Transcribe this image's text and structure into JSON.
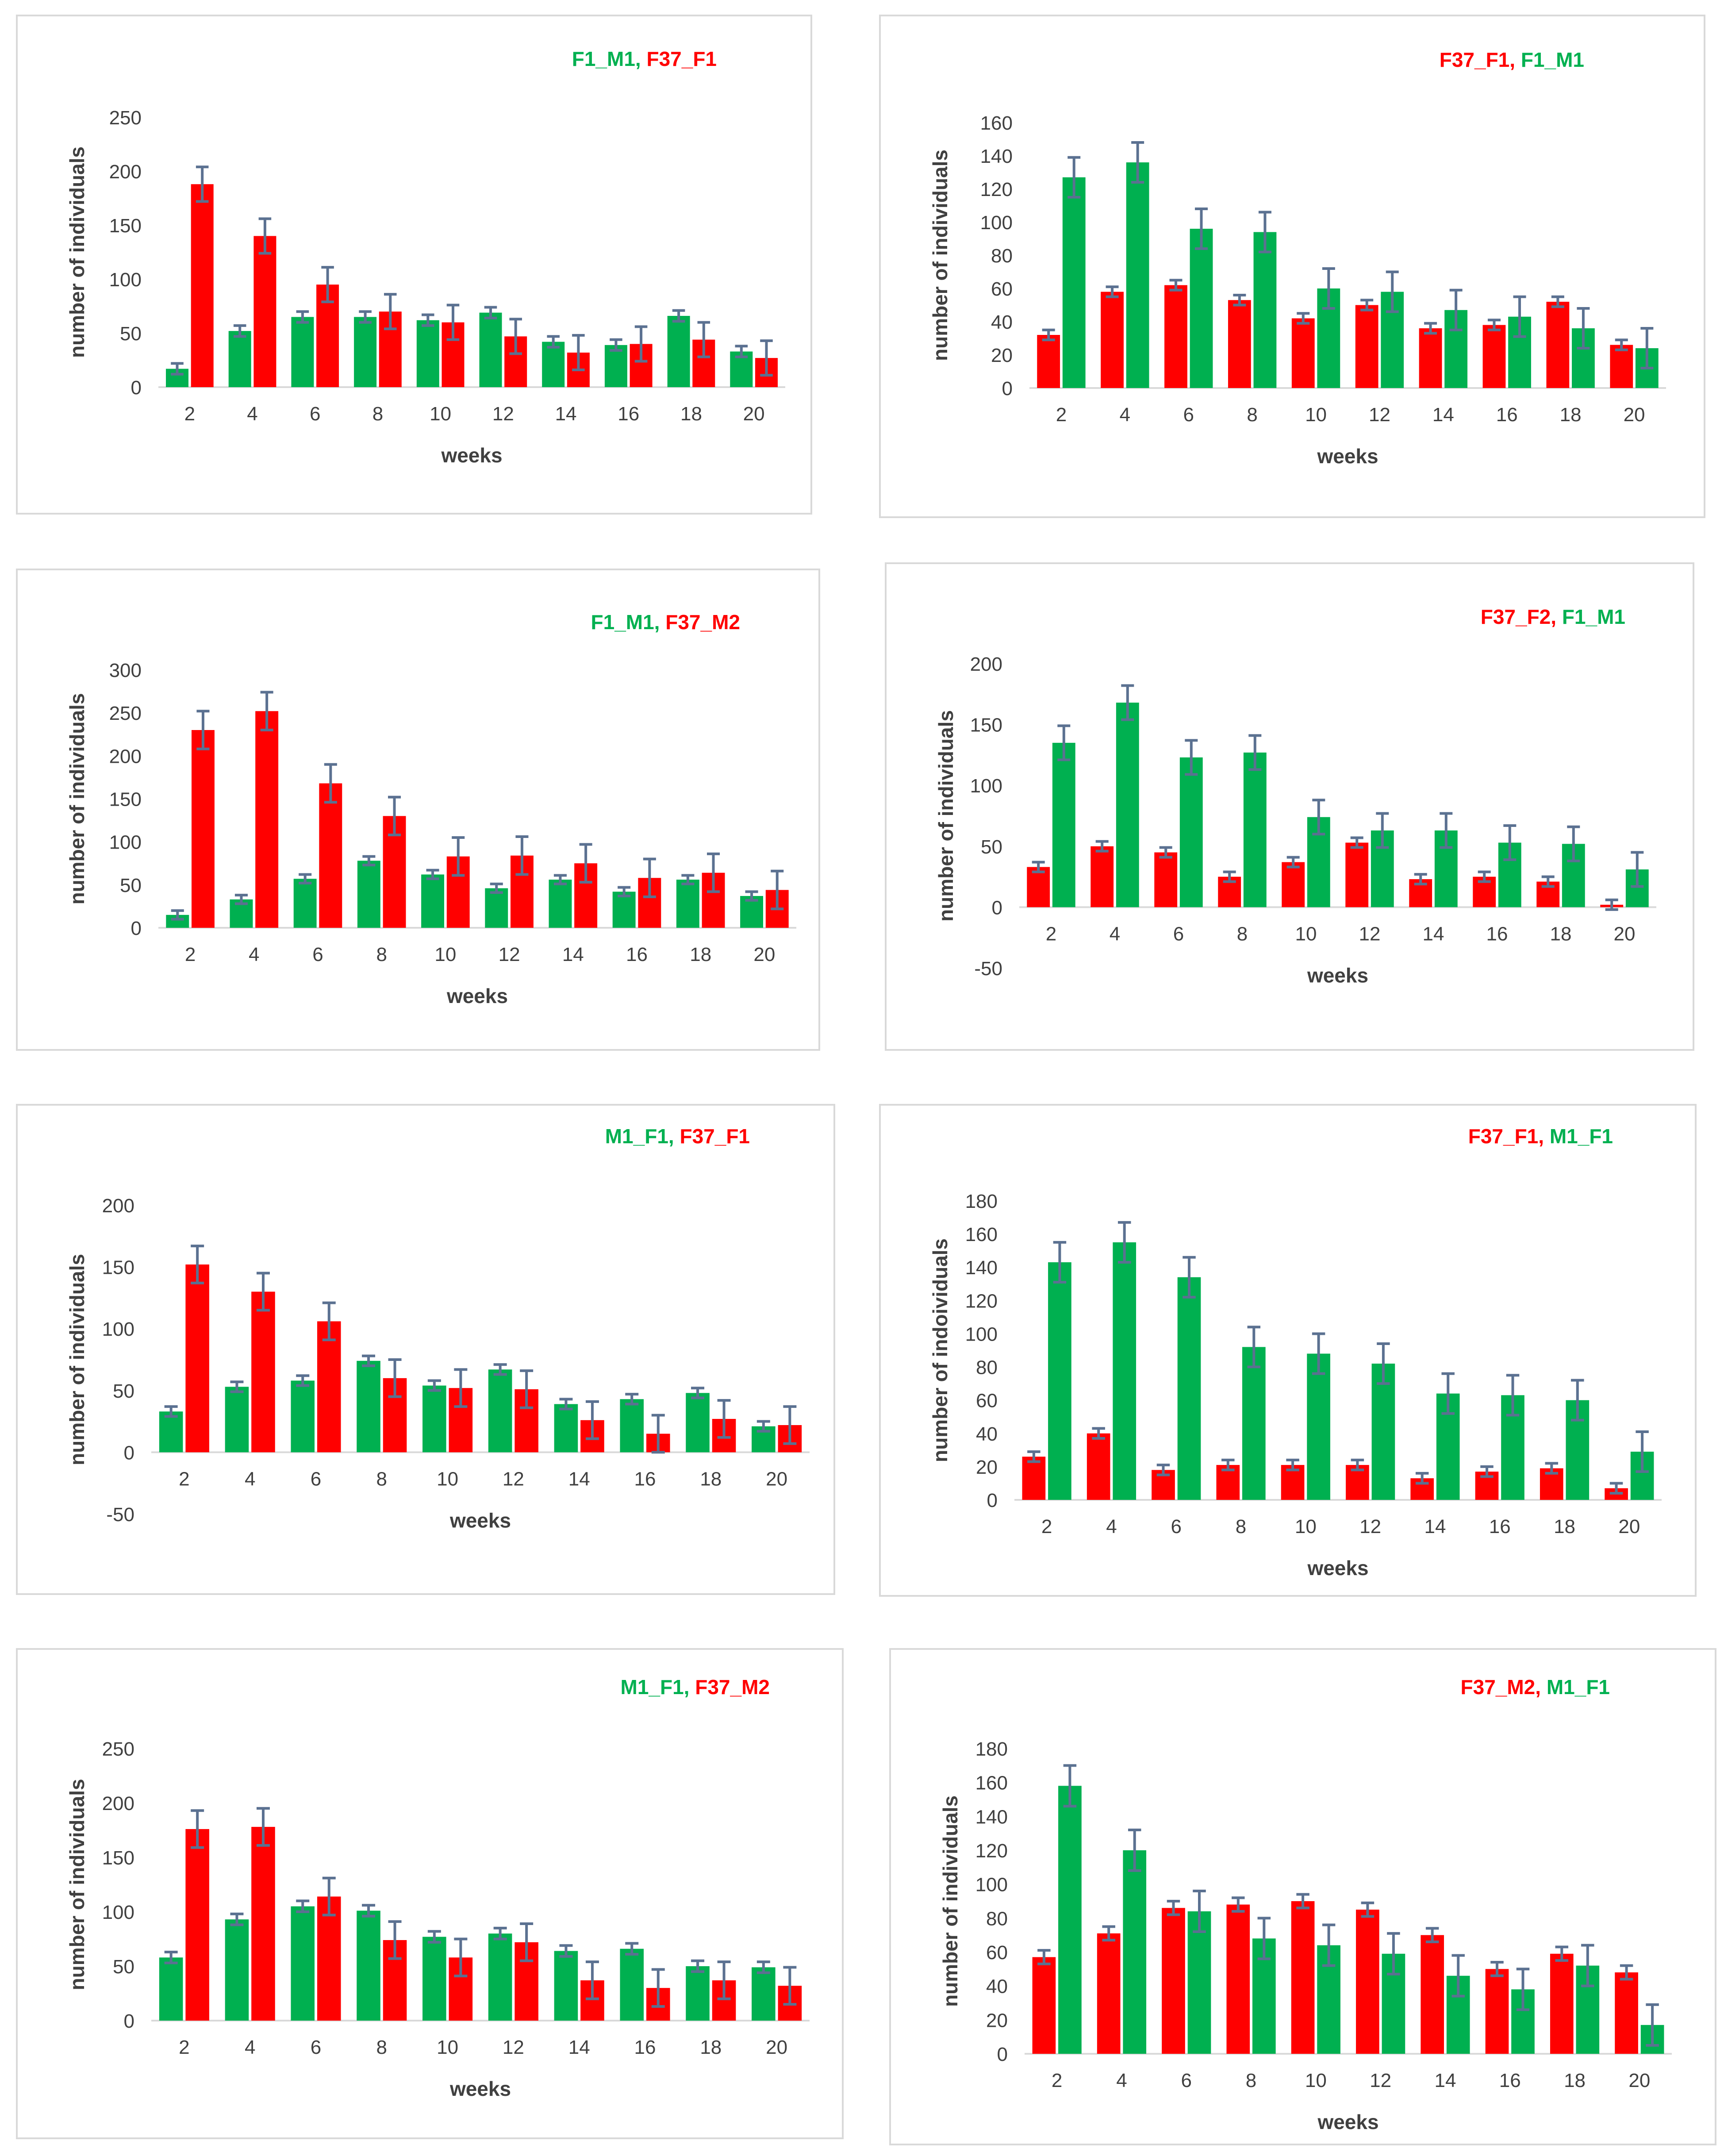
{
  "colors": {
    "red": "#ff0000",
    "green": "#00b050",
    "error": "#5b7191",
    "text": "#404040"
  },
  "chart_data": [
    {
      "type": "bar",
      "title": "F1_M1, F37_F1",
      "legend": [
        {
          "name": "F1_M1",
          "color": "green"
        },
        {
          "name": "F37_F1",
          "color": "red"
        }
      ],
      "xlabel": "weeks",
      "ylabel": "number of individuals",
      "categories": [
        "2",
        "4",
        "6",
        "8",
        "10",
        "12",
        "14",
        "16",
        "18",
        "20"
      ],
      "ylim": [
        0,
        250
      ],
      "yticks": [
        0,
        50,
        100,
        150,
        200,
        250
      ],
      "series": [
        {
          "name": "F1_M1",
          "color": "green",
          "values": [
            17,
            52,
            65,
            65,
            62,
            69,
            42,
            39,
            66,
            33
          ],
          "errors": [
            5,
            5,
            5,
            5,
            5,
            5,
            5,
            5,
            5,
            5
          ]
        },
        {
          "name": "F37_F1",
          "color": "red",
          "values": [
            188,
            140,
            95,
            70,
            60,
            47,
            32,
            40,
            44,
            27
          ],
          "errors": [
            16,
            16,
            16,
            16,
            16,
            16,
            16,
            16,
            16,
            16
          ]
        }
      ]
    },
    {
      "type": "bar",
      "title": "F37_F1, F1_M1",
      "legend": [
        {
          "name": "F37_F1",
          "color": "red"
        },
        {
          "name": "F1_M1",
          "color": "green"
        }
      ],
      "xlabel": "weeks",
      "ylabel": "number of individuals",
      "categories": [
        "2",
        "4",
        "6",
        "8",
        "10",
        "12",
        "14",
        "16",
        "18",
        "20"
      ],
      "ylim": [
        0,
        160
      ],
      "yticks": [
        0,
        20,
        40,
        60,
        80,
        100,
        120,
        140,
        160
      ],
      "series": [
        {
          "name": "F37_F1",
          "color": "red",
          "values": [
            32,
            58,
            62,
            53,
            42,
            50,
            36,
            38,
            52,
            26
          ],
          "errors": [
            3,
            3,
            3,
            3,
            3,
            3,
            3,
            3,
            3,
            3
          ]
        },
        {
          "name": "F1_M1",
          "color": "green",
          "values": [
            127,
            136,
            96,
            94,
            60,
            58,
            47,
            43,
            36,
            24
          ],
          "errors": [
            12,
            12,
            12,
            12,
            12,
            12,
            12,
            12,
            12,
            12
          ]
        }
      ]
    },
    {
      "type": "bar",
      "title": "F1_M1, F37_M2",
      "legend": [
        {
          "name": "F1_M1",
          "color": "green"
        },
        {
          "name": "F37_M2",
          "color": "red"
        }
      ],
      "xlabel": "weeks",
      "ylabel": "number of individuals",
      "categories": [
        "2",
        "4",
        "6",
        "8",
        "10",
        "12",
        "14",
        "16",
        "18",
        "20"
      ],
      "ylim": [
        0,
        300
      ],
      "yticks": [
        0,
        50,
        100,
        150,
        200,
        250,
        300
      ],
      "series": [
        {
          "name": "F1_M1",
          "color": "green",
          "values": [
            15,
            33,
            57,
            78,
            62,
            46,
            56,
            42,
            56,
            37
          ],
          "errors": [
            5,
            5,
            5,
            5,
            5,
            5,
            5,
            5,
            5,
            5
          ]
        },
        {
          "name": "F37_M2",
          "color": "red",
          "values": [
            230,
            252,
            168,
            130,
            83,
            84,
            75,
            58,
            64,
            44
          ],
          "errors": [
            22,
            22,
            22,
            22,
            22,
            22,
            22,
            22,
            22,
            22
          ]
        }
      ]
    },
    {
      "type": "bar",
      "title": "F37_F2, F1_M1",
      "legend": [
        {
          "name": "F37_F2",
          "color": "red"
        },
        {
          "name": "F1_M1",
          "color": "green"
        }
      ],
      "xlabel": "weeks",
      "ylabel": "number of individuals",
      "categories": [
        "2",
        "4",
        "6",
        "8",
        "10",
        "12",
        "14",
        "16",
        "18",
        "20"
      ],
      "ylim": [
        -50,
        200
      ],
      "yticks": [
        -50,
        0,
        50,
        100,
        150,
        200
      ],
      "series": [
        {
          "name": "F37_F2",
          "color": "red",
          "values": [
            33,
            50,
            45,
            25,
            37,
            53,
            23,
            25,
            21,
            2
          ],
          "errors": [
            4,
            4,
            4,
            4,
            4,
            4,
            4,
            4,
            4,
            4
          ]
        },
        {
          "name": "F1_M1",
          "color": "green",
          "values": [
            135,
            168,
            123,
            127,
            74,
            63,
            63,
            53,
            52,
            31
          ],
          "errors": [
            14,
            14,
            14,
            14,
            14,
            14,
            14,
            14,
            14,
            14
          ]
        }
      ]
    },
    {
      "type": "bar",
      "title": "M1_F1, F37_F1",
      "legend": [
        {
          "name": "M1_F1",
          "color": "green"
        },
        {
          "name": "F37_F1",
          "color": "red"
        }
      ],
      "xlabel": "weeks",
      "ylabel": "number of individuals",
      "categories": [
        "2",
        "4",
        "6",
        "8",
        "10",
        "12",
        "14",
        "16",
        "18",
        "20"
      ],
      "ylim": [
        -50,
        200
      ],
      "yticks": [
        -50,
        0,
        50,
        100,
        150,
        200
      ],
      "series": [
        {
          "name": "M1_F1",
          "color": "green",
          "values": [
            33,
            53,
            58,
            74,
            54,
            67,
            39,
            43,
            48,
            21
          ],
          "errors": [
            4,
            4,
            4,
            4,
            4,
            4,
            4,
            4,
            4,
            4
          ]
        },
        {
          "name": "F37_F1",
          "color": "red",
          "values": [
            152,
            130,
            106,
            60,
            52,
            51,
            26,
            15,
            27,
            22
          ],
          "errors": [
            15,
            15,
            15,
            15,
            15,
            15,
            15,
            15,
            15,
            15
          ]
        }
      ]
    },
    {
      "type": "bar",
      "title": "F37_F1, M1_F1",
      "legend": [
        {
          "name": "F37_F1",
          "color": "red"
        },
        {
          "name": "M1_F1",
          "color": "green"
        }
      ],
      "xlabel": "weeks",
      "ylabel": "number of indoividuals",
      "categories": [
        "2",
        "4",
        "6",
        "8",
        "10",
        "12",
        "14",
        "16",
        "18",
        "20"
      ],
      "ylim": [
        0,
        180
      ],
      "yticks": [
        0,
        20,
        40,
        60,
        80,
        100,
        120,
        140,
        160,
        180
      ],
      "series": [
        {
          "name": "F37_F1",
          "color": "red",
          "values": [
            26,
            40,
            18,
            21,
            21,
            21,
            13,
            17,
            19,
            7
          ],
          "errors": [
            3,
            3,
            3,
            3,
            3,
            3,
            3,
            3,
            3,
            3
          ]
        },
        {
          "name": "M1_F1",
          "color": "green",
          "values": [
            143,
            155,
            134,
            92,
            88,
            82,
            64,
            63,
            60,
            29
          ],
          "errors": [
            12,
            12,
            12,
            12,
            12,
            12,
            12,
            12,
            12,
            12
          ]
        }
      ]
    },
    {
      "type": "bar",
      "title": "M1_F1, F37_M2",
      "legend": [
        {
          "name": "M1_F1",
          "color": "green"
        },
        {
          "name": "F37_M2",
          "color": "red"
        }
      ],
      "xlabel": "weeks",
      "ylabel": "number of individuals",
      "categories": [
        "2",
        "4",
        "6",
        "8",
        "10",
        "12",
        "14",
        "16",
        "18",
        "20"
      ],
      "ylim": [
        0,
        250
      ],
      "yticks": [
        0,
        50,
        100,
        150,
        200,
        250
      ],
      "series": [
        {
          "name": "M1_F1",
          "color": "green",
          "values": [
            58,
            93,
            105,
            101,
            77,
            80,
            64,
            66,
            50,
            49
          ],
          "errors": [
            5,
            5,
            5,
            5,
            5,
            5,
            5,
            5,
            5,
            5
          ]
        },
        {
          "name": "F37_M2",
          "color": "red",
          "values": [
            176,
            178,
            114,
            74,
            58,
            72,
            37,
            30,
            37,
            32
          ],
          "errors": [
            17,
            17,
            17,
            17,
            17,
            17,
            17,
            17,
            17,
            17
          ]
        }
      ]
    },
    {
      "type": "bar",
      "title": "F37_M2, M1_F1",
      "legend": [
        {
          "name": "F37_M2",
          "color": "red"
        },
        {
          "name": "M1_F1",
          "color": "green"
        }
      ],
      "xlabel": "weeks",
      "ylabel": "number of individuals",
      "categories": [
        "2",
        "4",
        "6",
        "8",
        "10",
        "12",
        "14",
        "16",
        "18",
        "20"
      ],
      "ylim": [
        0,
        180
      ],
      "yticks": [
        0,
        20,
        40,
        60,
        80,
        100,
        120,
        140,
        160,
        180
      ],
      "series": [
        {
          "name": "F37_M2",
          "color": "red",
          "values": [
            57,
            71,
            86,
            88,
            90,
            85,
            70,
            50,
            59,
            48
          ],
          "errors": [
            4,
            4,
            4,
            4,
            4,
            4,
            4,
            4,
            4,
            4
          ]
        },
        {
          "name": "M1_F1",
          "color": "green",
          "values": [
            158,
            120,
            84,
            68,
            64,
            59,
            46,
            38,
            52,
            17
          ],
          "errors": [
            12,
            12,
            12,
            12,
            12,
            12,
            12,
            12,
            12,
            12
          ]
        }
      ]
    }
  ]
}
